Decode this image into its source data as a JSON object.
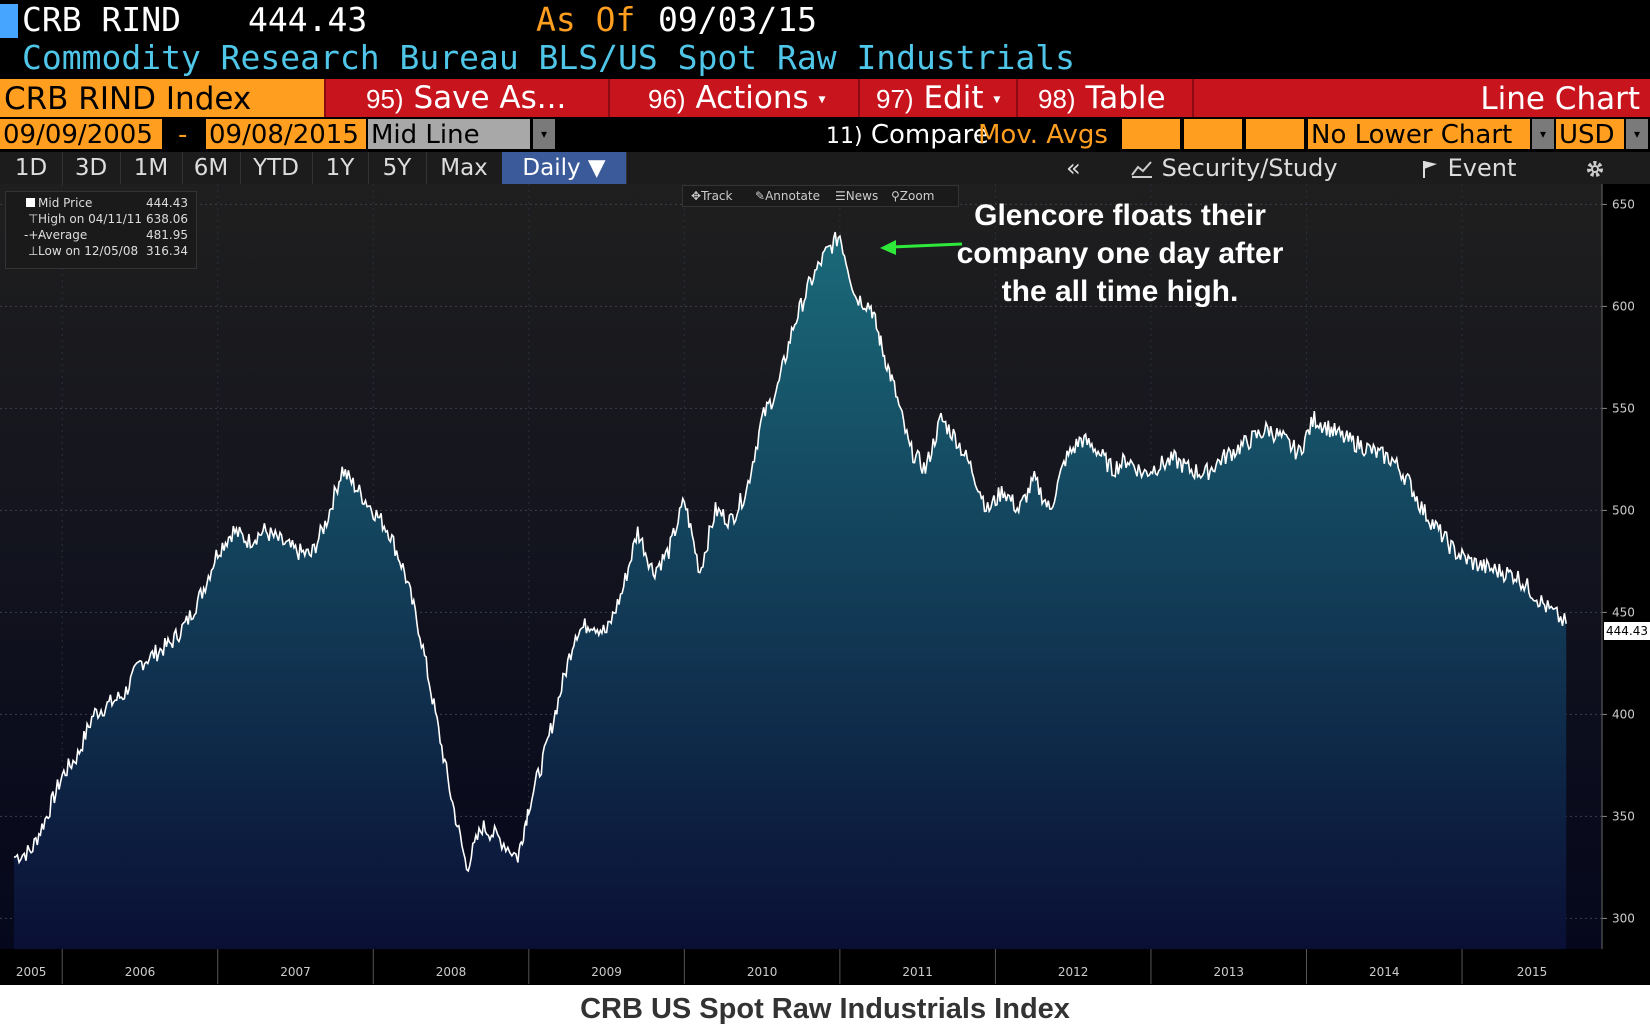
{
  "header": {
    "ticker": "CRB RIND",
    "price": "444.43",
    "as_of_label": "As Of",
    "as_of_date": "09/03/15",
    "description": "Commodity Research Bureau BLS/US Spot Raw Industrials"
  },
  "toolbar": {
    "security": "CRB RIND Index",
    "save_num": "95)",
    "save_label": "Save As...",
    "actions_num": "96)",
    "actions_label": "Actions",
    "edit_num": "97)",
    "edit_label": "Edit",
    "table_num": "98)",
    "table_label": "Table",
    "chart_type": "Line Chart"
  },
  "settings": {
    "start_date": "09/09/2005",
    "dash": "-",
    "end_date": "09/08/2015",
    "line_type": "Mid Line",
    "compare_num": "11)",
    "compare_label": "Compare",
    "mov_avgs": "Mov. Avgs",
    "lower_chart": "No Lower Chart",
    "currency": "USD"
  },
  "ranges": [
    "1D",
    "3D",
    "1M",
    "6M",
    "YTD",
    "1Y",
    "5Y",
    "Max"
  ],
  "frequency": "Daily",
  "right_tools": {
    "collapse": "«",
    "security_study": "Security/Study",
    "event": "Event"
  },
  "chart_tools": [
    "Track",
    "Annotate",
    "News",
    "Zoom"
  ],
  "legend": {
    "rows": [
      {
        "name": "Mid Price",
        "value": "444.43"
      },
      {
        "name": "High on 04/11/11",
        "value": "638.06"
      },
      {
        "name": "Average",
        "value": "481.95"
      },
      {
        "name": "Low on 12/05/08",
        "value": "316.34"
      }
    ]
  },
  "annotation": "Glencore floats their company one day after the all time high.",
  "caption": "CRB US Spot Raw Industrials Index",
  "last_price_tag": "444.43",
  "colors": {
    "background": "#000000",
    "chart_top": "#1f1f1f",
    "chart_bottom": "#05071c",
    "area_top": "#1a6a7a",
    "area_bottom": "#0a0f35",
    "line": "#ffffff",
    "toolbar_red": "#c8141d",
    "orange": "#ff9e1f",
    "title_cyan": "#4fc6e8",
    "arrow_green": "#2ee83a"
  },
  "chart_data": {
    "type": "area",
    "title": "",
    "xlabel": "",
    "ylabel": "",
    "ylim": [
      285,
      660
    ],
    "yticks": [
      300,
      350,
      400,
      450,
      500,
      550,
      600,
      650
    ],
    "x_year_labels": [
      "2005",
      "2006",
      "2007",
      "2008",
      "2009",
      "2010",
      "2011",
      "2012",
      "2013",
      "2014",
      "2015"
    ],
    "grid": true,
    "legend_position": "top-left",
    "series": [
      {
        "name": "Mid Price",
        "x": [
          2005.69,
          2005.8,
          2005.9,
          2006.0,
          2006.1,
          2006.2,
          2006.3,
          2006.4,
          2006.5,
          2006.6,
          2006.7,
          2006.8,
          2006.9,
          2007.0,
          2007.1,
          2007.2,
          2007.3,
          2007.4,
          2007.5,
          2007.6,
          2007.7,
          2007.8,
          2007.9,
          2008.0,
          2008.1,
          2008.2,
          2008.3,
          2008.4,
          2008.5,
          2008.6,
          2008.7,
          2008.8,
          2008.93,
          2009.0,
          2009.1,
          2009.2,
          2009.3,
          2009.4,
          2009.5,
          2009.6,
          2009.7,
          2009.8,
          2009.9,
          2010.0,
          2010.1,
          2010.2,
          2010.3,
          2010.4,
          2010.5,
          2010.6,
          2010.7,
          2010.8,
          2010.9,
          2011.0,
          2011.1,
          2011.2,
          2011.27,
          2011.35,
          2011.45,
          2011.55,
          2011.65,
          2011.75,
          2011.85,
          2011.95,
          2012.05,
          2012.15,
          2012.25,
          2012.35,
          2012.45,
          2012.55,
          2012.65,
          2012.75,
          2012.85,
          2012.95,
          2013.05,
          2013.15,
          2013.25,
          2013.35,
          2013.45,
          2013.55,
          2013.65,
          2013.75,
          2013.85,
          2013.95,
          2014.05,
          2014.15,
          2014.25,
          2014.35,
          2014.45,
          2014.55,
          2014.65,
          2014.75,
          2014.85,
          2014.95,
          2015.05,
          2015.15,
          2015.25,
          2015.35,
          2015.45,
          2015.55,
          2015.67
        ],
        "values": [
          330,
          333,
          350,
          370,
          380,
          400,
          405,
          410,
          425,
          430,
          435,
          445,
          460,
          480,
          490,
          485,
          490,
          485,
          480,
          478,
          495,
          520,
          510,
          500,
          490,
          470,
          440,
          400,
          360,
          325,
          345,
          340,
          330,
          355,
          380,
          410,
          440,
          445,
          440,
          460,
          490,
          470,
          480,
          505,
          470,
          500,
          495,
          510,
          545,
          560,
          590,
          610,
          625,
          635,
          605,
          600,
          580,
          560,
          530,
          520,
          545,
          535,
          520,
          500,
          510,
          500,
          515,
          500,
          525,
          535,
          530,
          520,
          525,
          518,
          522,
          525,
          520,
          518,
          525,
          530,
          535,
          540,
          535,
          528,
          545,
          540,
          535,
          532,
          528,
          525,
          515,
          500,
          490,
          480,
          475,
          472,
          470,
          468,
          460,
          452,
          444.43
        ]
      }
    ]
  }
}
